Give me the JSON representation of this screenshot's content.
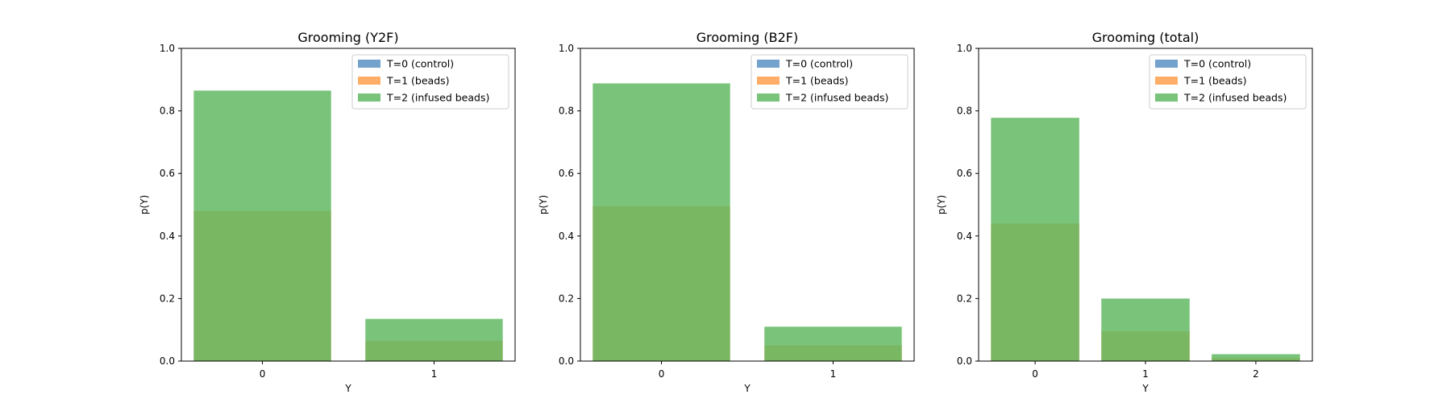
{
  "chart_data": [
    {
      "type": "bar",
      "title": "Grooming (Y2F)",
      "xlabel": "Y",
      "ylabel": "p(Y)",
      "categories": [
        "0",
        "1"
      ],
      "ylim": [
        0,
        1.0
      ],
      "yticks": [
        "0.0",
        "0.2",
        "0.4",
        "0.6",
        "0.8",
        "1.0"
      ],
      "legend_position": "top-right",
      "series": [
        {
          "name": "T=0 (control)",
          "color": "#5b92c4",
          "values": [
            0.0,
            0.0
          ]
        },
        {
          "name": "T=1 (beads)",
          "color": "#ffa04d",
          "values": [
            0.48,
            0.065
          ]
        },
        {
          "name": "T=2 (infused beads)",
          "color": "#63b963",
          "values": [
            0.865,
            0.135
          ]
        }
      ]
    },
    {
      "type": "bar",
      "title": "Grooming (B2F)",
      "xlabel": "Y",
      "ylabel": "p(Y)",
      "categories": [
        "0",
        "1"
      ],
      "ylim": [
        0,
        1.0
      ],
      "yticks": [
        "0.0",
        "0.2",
        "0.4",
        "0.6",
        "0.8",
        "1.0"
      ],
      "legend_position": "top-right",
      "series": [
        {
          "name": "T=0 (control)",
          "color": "#5b92c4",
          "values": [
            0.0,
            0.0
          ]
        },
        {
          "name": "T=1 (beads)",
          "color": "#ffa04d",
          "values": [
            0.495,
            0.05
          ]
        },
        {
          "name": "T=2 (infused beads)",
          "color": "#63b963",
          "values": [
            0.888,
            0.11
          ]
        }
      ]
    },
    {
      "type": "bar",
      "title": "Grooming (total)",
      "xlabel": "Y",
      "ylabel": "p(Y)",
      "categories": [
        "0",
        "1",
        "2"
      ],
      "ylim": [
        0,
        1.0
      ],
      "yticks": [
        "0.0",
        "0.2",
        "0.4",
        "0.6",
        "0.8",
        "1.0"
      ],
      "legend_position": "top-right",
      "series": [
        {
          "name": "T=0 (control)",
          "color": "#5b92c4",
          "values": [
            0.0,
            0.0,
            0.0
          ]
        },
        {
          "name": "T=1 (beads)",
          "color": "#ffa04d",
          "values": [
            0.44,
            0.095,
            0.01
          ]
        },
        {
          "name": "T=2 (infused beads)",
          "color": "#63b963",
          "values": [
            0.778,
            0.2,
            0.022
          ]
        }
      ]
    }
  ]
}
